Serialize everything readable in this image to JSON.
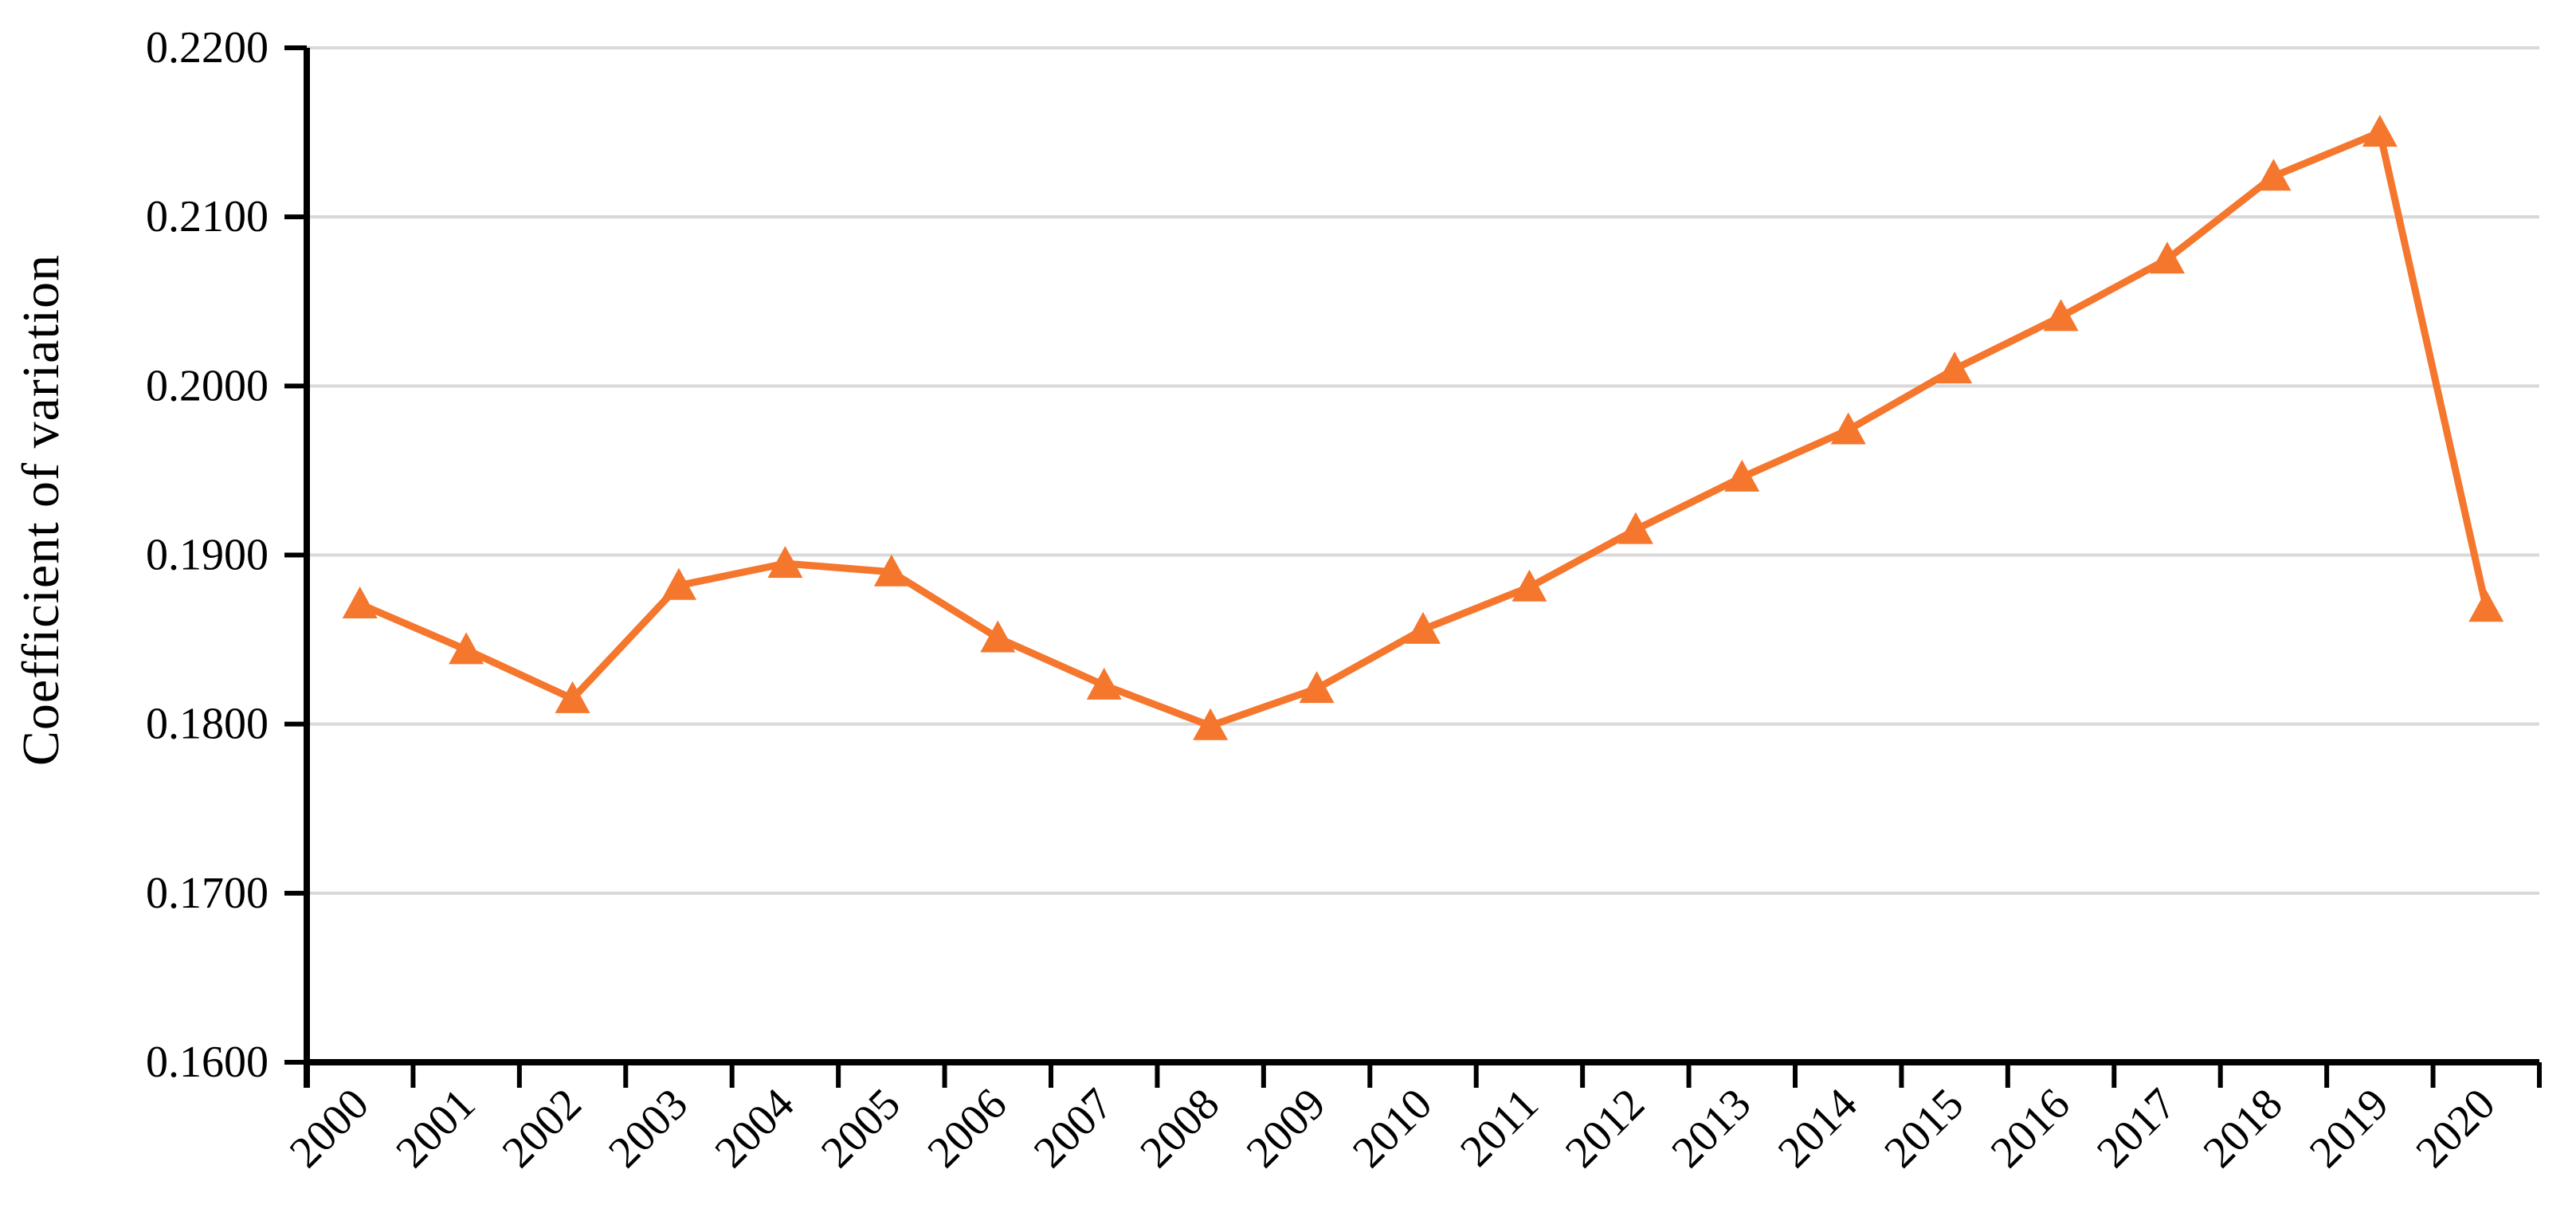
{
  "chart_data": {
    "type": "line",
    "title": "",
    "xlabel": "",
    "ylabel": "Coefficient of variation",
    "categories": [
      "2000",
      "2001",
      "2002",
      "2003",
      "2004",
      "2005",
      "2006",
      "2007",
      "2008",
      "2009",
      "2010",
      "2011",
      "2012",
      "2013",
      "2014",
      "2015",
      "2016",
      "2017",
      "2018",
      "2019",
      "2020"
    ],
    "series": [
      {
        "name": "Coefficient of variation",
        "marker": "triangle",
        "color": "#F5762D",
        "values": [
          0.1871,
          0.1844,
          0.1815,
          0.1882,
          0.1895,
          0.189,
          0.1851,
          0.1823,
          0.1799,
          0.1821,
          0.1856,
          0.1881,
          0.1915,
          0.1946,
          0.1974,
          0.201,
          0.2041,
          0.2075,
          0.2124,
          0.215,
          0.1869
        ]
      }
    ],
    "ylim": [
      0.16,
      0.22
    ],
    "ytick_step": 0.01,
    "ytick_labels": [
      "0.1600",
      "0.1700",
      "0.1800",
      "0.1900",
      "0.2000",
      "0.2100",
      "0.2200"
    ],
    "x_label_rotation": -45,
    "grid": "horizontal",
    "gridline_color": "#D9D9D9",
    "axis_color": "#000000",
    "text_color": "#000000",
    "legend_position": "none"
  }
}
